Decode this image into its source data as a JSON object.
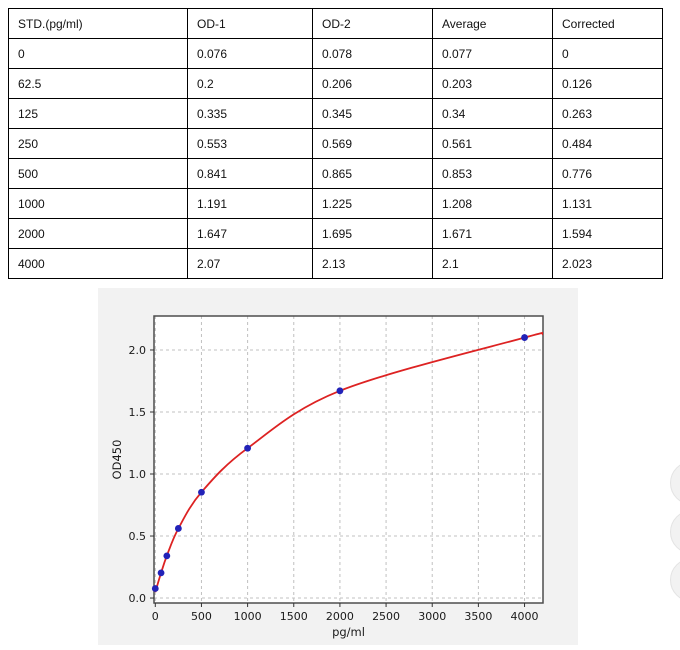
{
  "table": {
    "headers": [
      "STD.(pg/ml)",
      "OD-1",
      "OD-2",
      "Average",
      "Corrected"
    ],
    "rows": [
      [
        "0",
        "0.076",
        "0.078",
        "0.077",
        "0"
      ],
      [
        "62.5",
        "0.2",
        "0.206",
        "0.203",
        "0.126"
      ],
      [
        "125",
        "0.335",
        "0.345",
        "0.34",
        "0.263"
      ],
      [
        "250",
        "0.553",
        "0.569",
        "0.561",
        "0.484"
      ],
      [
        "500",
        "0.841",
        "0.865",
        "0.853",
        "0.776"
      ],
      [
        "1000",
        "1.191",
        "1.225",
        "1.208",
        "1.131"
      ],
      [
        "2000",
        "1.647",
        "1.695",
        "1.671",
        "1.594"
      ],
      [
        "4000",
        "2.07",
        "2.13",
        "2.1",
        "2.023"
      ]
    ]
  },
  "chart_data": {
    "type": "scatter",
    "title": "",
    "xlabel": "pg/ml",
    "ylabel": "OD450",
    "x": [
      0,
      62.5,
      125,
      250,
      500,
      1000,
      2000,
      4000
    ],
    "y": [
      0.077,
      0.203,
      0.34,
      0.561,
      0.853,
      1.208,
      1.671,
      2.1
    ],
    "series_note": "blue dots = standard averages, red line = fitted standard curve",
    "fit_curve_points": [
      [
        0,
        0.048
      ],
      [
        62.5,
        0.203
      ],
      [
        125,
        0.34
      ],
      [
        250,
        0.561
      ],
      [
        500,
        0.853
      ],
      [
        1000,
        1.208
      ],
      [
        2000,
        1.671
      ],
      [
        4000,
        2.1
      ],
      [
        4200,
        2.127
      ]
    ],
    "xticks": [
      0,
      500,
      1000,
      1500,
      2000,
      2500,
      3000,
      3500,
      4000
    ],
    "yticks": [
      0,
      0.5,
      1,
      1.5,
      2
    ],
    "ytick_labels": [
      "0.0",
      "0.5",
      "1.0",
      "1.5",
      "2.0"
    ],
    "xlim": [
      -14,
      4200
    ],
    "ylim": [
      -0.04,
      2.274
    ],
    "grid": true,
    "legend_position": "none",
    "colors": {
      "marker": "#2222b8",
      "curve": "#dd2222",
      "figure_bg": "#f2f2f2",
      "plot_bg": "#ffffff",
      "grid": "#c0c0c0",
      "axis_border": "#4d4d4d",
      "tick_text": "#1a1a1a"
    }
  }
}
